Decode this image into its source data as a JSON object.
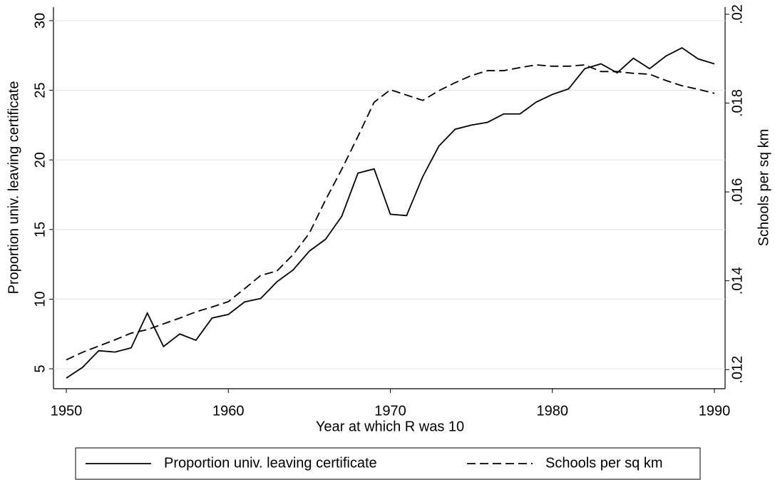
{
  "chart_data": {
    "type": "line",
    "x_label": "Year at which R was 10",
    "y_label": "Proportion univ. leaving certificate",
    "y2_label": "Schools per sq km",
    "x": [
      1950,
      1951,
      1952,
      1953,
      1954,
      1955,
      1956,
      1957,
      1958,
      1959,
      1960,
      1961,
      1962,
      1963,
      1964,
      1965,
      1966,
      1967,
      1968,
      1969,
      1970,
      1971,
      1972,
      1973,
      1974,
      1975,
      1976,
      1977,
      1978,
      1979,
      1980,
      1981,
      1982,
      1983,
      1984,
      1985,
      1986,
      1987,
      1988,
      1989,
      1990
    ],
    "xlim": [
      1950,
      1990
    ],
    "xticks": [
      1950,
      1960,
      1970,
      1980,
      1990
    ],
    "ylim": [
      3.57,
      30.97
    ],
    "yticks": [
      5,
      10,
      15,
      20,
      25,
      30
    ],
    "y2lim": [
      0.01157,
      0.02016
    ],
    "y2ticks": [
      {
        "value": 0.012,
        "label": ".012"
      },
      {
        "value": 0.014,
        "label": ".014"
      },
      {
        "value": 0.016,
        "label": ".016"
      },
      {
        "value": 0.018,
        "label": ".018"
      },
      {
        "value": 0.02,
        "label": ".02"
      }
    ],
    "grid": true,
    "legend": "bottom",
    "series": [
      {
        "name": "Proportion univ. leaving certificate",
        "color": "#000000",
        "dash": "solid",
        "values": [
          4.33,
          5.1,
          6.3,
          6.2,
          6.5,
          9.0,
          6.6,
          7.5,
          7.05,
          8.65,
          8.9,
          9.8,
          10.05,
          11.25,
          12.1,
          13.45,
          14.3,
          15.95,
          19.05,
          19.35,
          16.1,
          16.0,
          18.8,
          21.0,
          22.2,
          22.5,
          22.7,
          23.3,
          23.3,
          24.15,
          24.7,
          25.1,
          26.55,
          26.9,
          26.25,
          27.3,
          26.55,
          27.45,
          28.05,
          27.25,
          26.9
        ]
      },
      {
        "name": "Schools per sq km",
        "color": "#000000",
        "dash": "dashed",
        "axis": "y2",
        "values": [
          0.01222,
          0.01239,
          0.01253,
          0.01267,
          0.01282,
          0.0129,
          0.01303,
          0.01316,
          0.0133,
          0.01341,
          0.01353,
          0.01382,
          0.01412,
          0.01422,
          0.01459,
          0.01507,
          0.01582,
          0.01651,
          0.01725,
          0.01802,
          0.0183,
          0.01818,
          0.01806,
          0.01828,
          0.01846,
          0.01862,
          0.01873,
          0.01873,
          0.0188,
          0.01886,
          0.01883,
          0.01883,
          0.01886,
          0.01871,
          0.01871,
          0.01867,
          0.01865,
          0.01851,
          0.01839,
          0.01831,
          0.01822
        ]
      }
    ]
  }
}
